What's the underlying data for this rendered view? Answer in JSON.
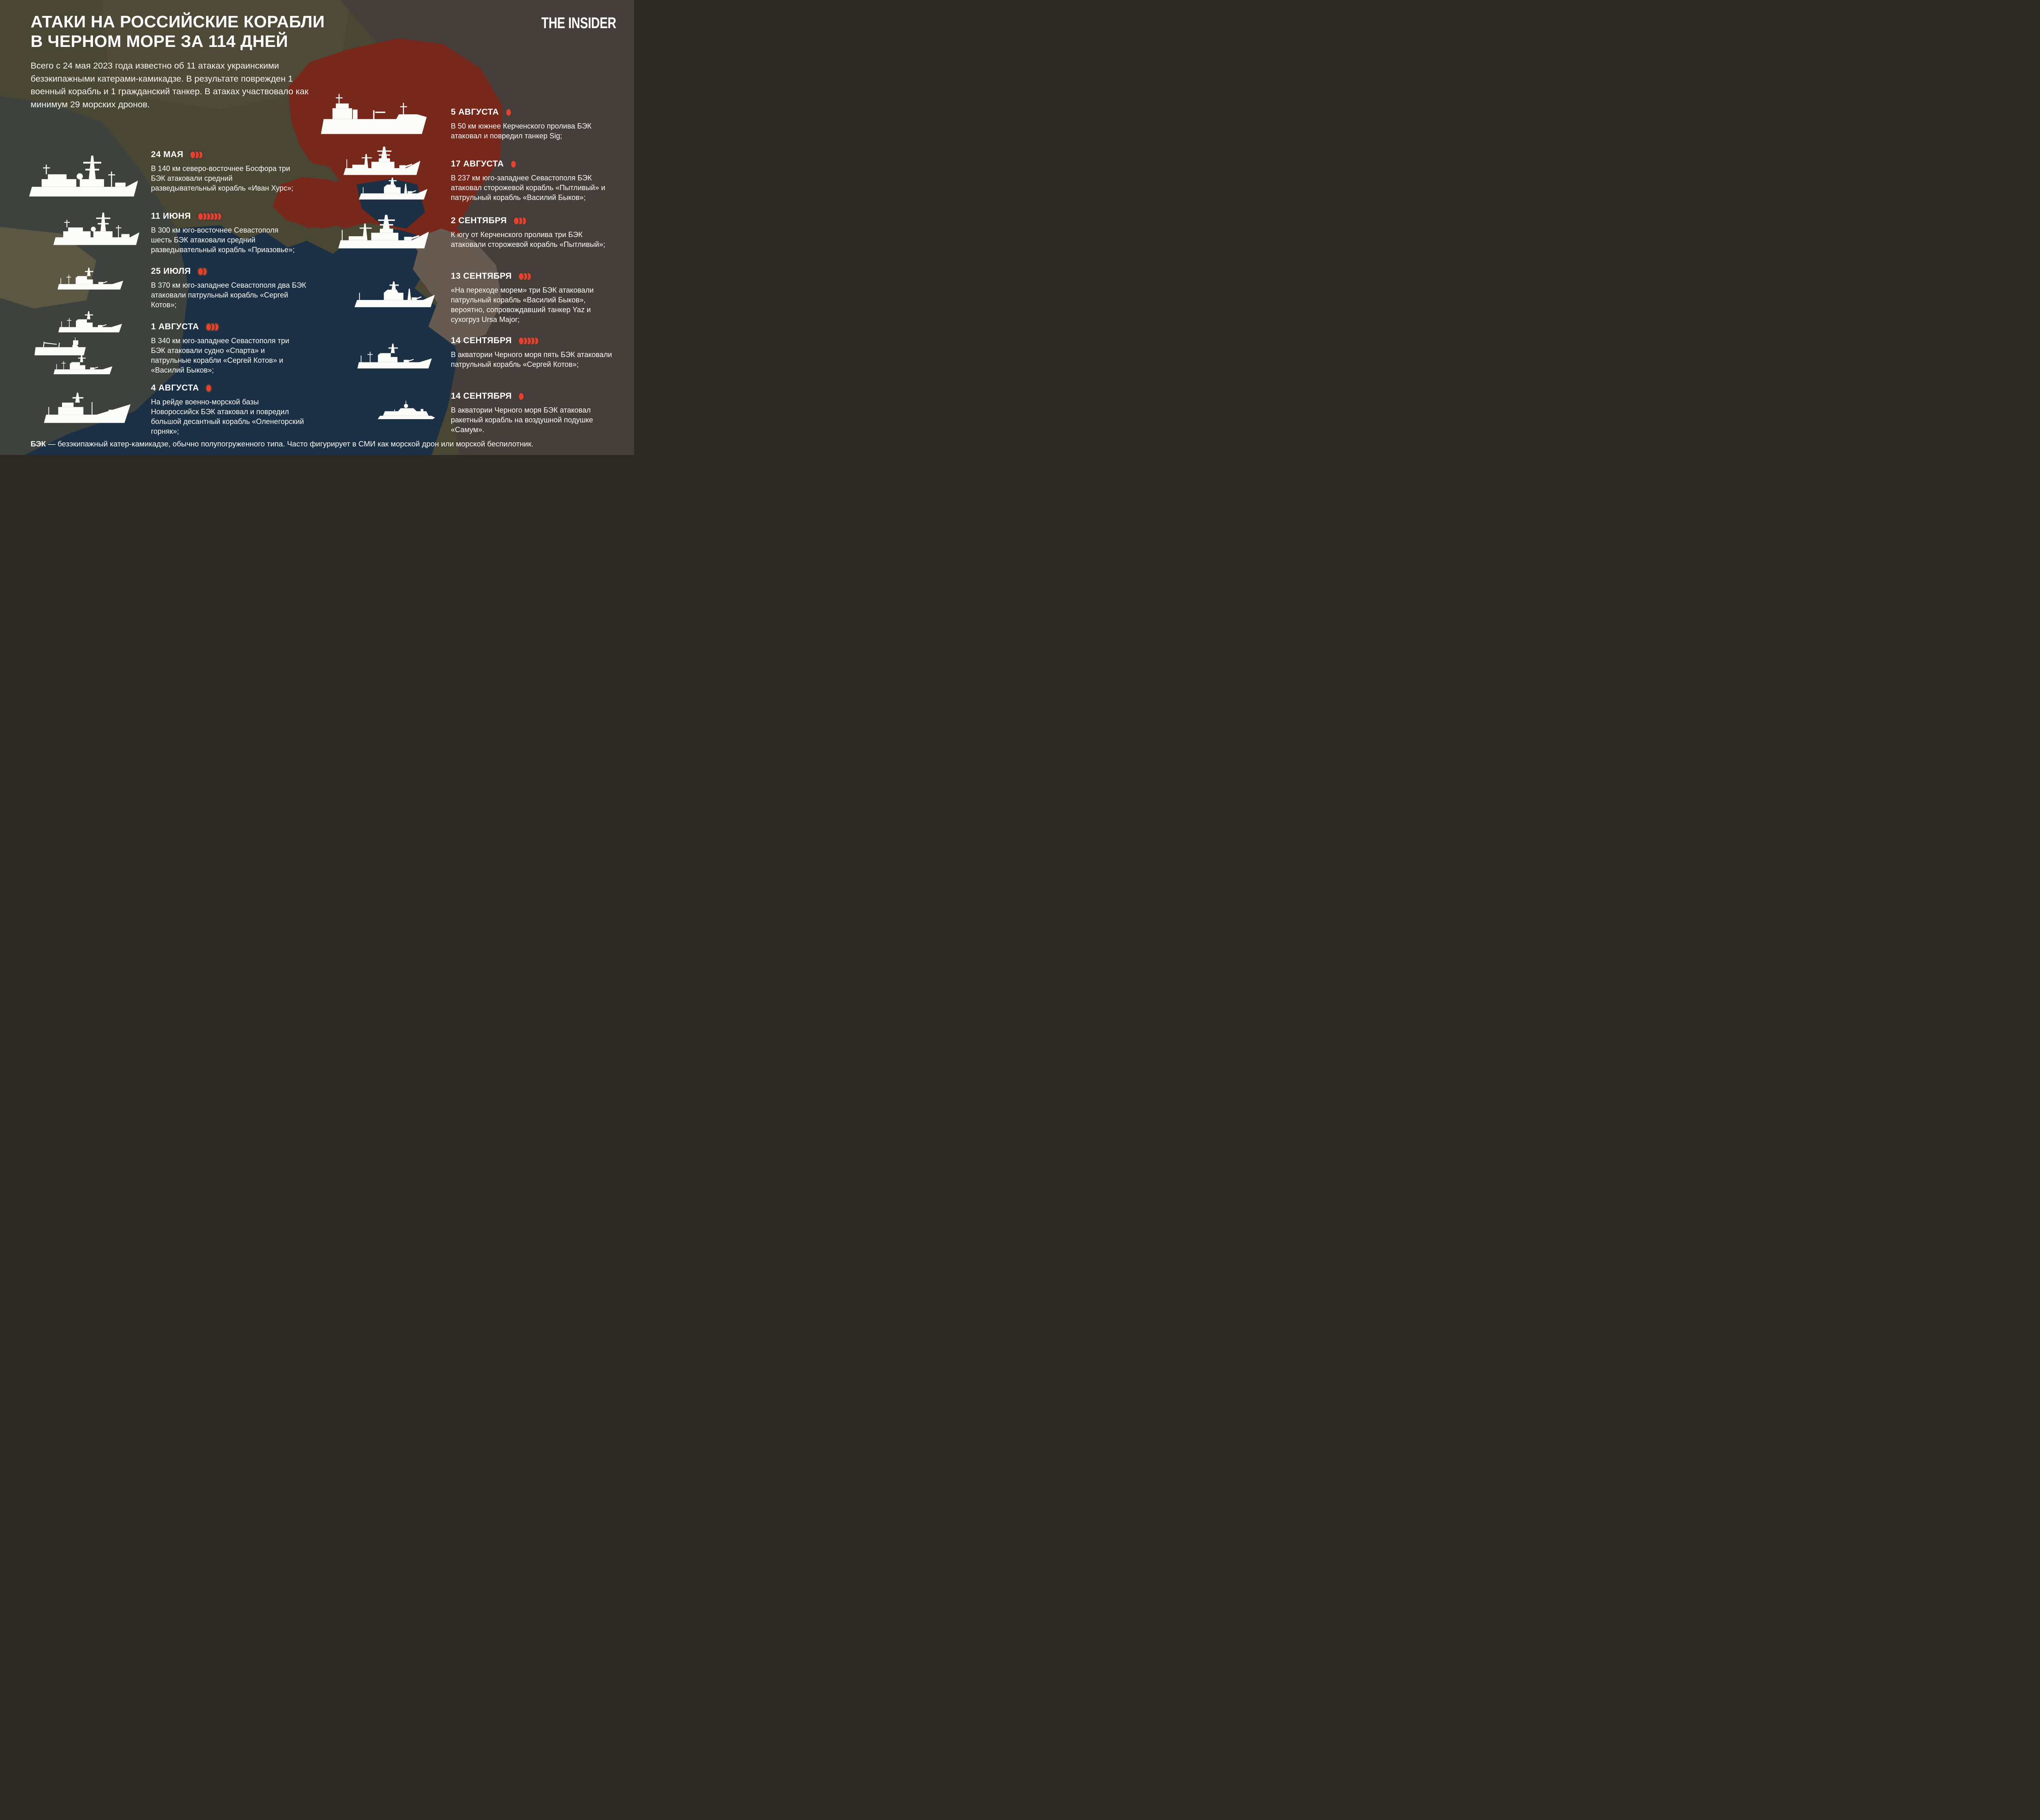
{
  "header": {
    "title_line1": "АТАКИ НА РОССИЙСКИЕ КОРАБЛИ",
    "title_line2": "В ЧЕРНОМ МОРЕ ЗА 114 ДНЕЙ",
    "logo": "THE INSIDER"
  },
  "intro": "Всего с 24 мая 2023 года известно об 11 атаках украинскими безэкипажными катерами-камикадзе. В результате поврежден 1 военный корабль и 1 гражданский танкер. В атаках участвовало как минимум 29 морских дронов.",
  "events_left": [
    {
      "date": "24 МАЯ",
      "drones": 3,
      "text": "В 140 км северо-восточнее Босфора три БЭК атаковали средний разведывательный корабль «Иван Хурс»;",
      "ship_icon": "intel-ship-icon"
    },
    {
      "date": "11 ИЮНЯ",
      "drones": 6,
      "text": "В 300 км юго-восточнее Севастополя шесть БЭК атаковали средний разведывательный корабль «Приазовье»;",
      "ship_icon": "intel-ship-icon"
    },
    {
      "date": "25 ИЮЛЯ",
      "drones": 2,
      "text": "В 370 км юго-западнее Севастополя два БЭК атаковали патрульный корабль «Сергей Котов»;",
      "ship_icon": "patrol-ship-icon"
    },
    {
      "date": "1 АВГУСТА",
      "drones": 3,
      "text": "В 340 км юго-западнее Севастополя три БЭК атаковали судно «Спарта» и патрульные корабли «Сергей Котов» и «Василий Быков»;",
      "ship_icon": "patrol-cargo-ships-icon"
    },
    {
      "date": "4 АВГУСТА",
      "drones": 1,
      "text": "На рейде военно-морской базы Новороссийск БЭК атаковал и повредил большой десантный корабль «Оленегорский горняк»;",
      "ship_icon": "landing-ship-icon"
    }
  ],
  "events_right": [
    {
      "date": "5 АВГУСТА",
      "drones": 1,
      "text": "В 50 км южнее Керченского пролива БЭК атаковал и повредил танкер Sig;",
      "ship_icon": "tanker-icon"
    },
    {
      "date": "17 АВГУСТА",
      "drones": 1,
      "text": "В 237 км юго-западнее Севастополя БЭК атаковал сторожевой корабль «Пытливый» и патрульный корабль «Василий Быков»;",
      "ship_icon": "destroyer-corvette-icons"
    },
    {
      "date": "2 СЕНТЯБРЯ",
      "drones": 3,
      "text": "К югу от Керченского пролива три БЭК атаковали сторожевой корабль «Пытливый»;",
      "ship_icon": "destroyer-icon"
    },
    {
      "date": "13 СЕНТЯБРЯ",
      "drones": 3,
      "text": "«На переходе морем» три БЭК атаковали патрульный корабль «Василий Быков», вероятно, сопровождавший танкер Yaz и сухогруз Ursa Major;",
      "ship_icon": "corvette-icon"
    },
    {
      "date": "14 СЕНТЯБРЯ",
      "drones": 5,
      "text": "В акватории Черного моря пять БЭК атаковали патрульный корабль «Сергей Котов»;",
      "ship_icon": "patrol-ship-icon"
    },
    {
      "date": "14 СЕНТЯБРЯ",
      "drones": 1,
      "text": "В акватории Черного моря БЭК атаковал ракетный корабль на воздушной подушке «Самум».",
      "ship_icon": "hovercraft-icon"
    }
  ],
  "footer": {
    "term": "БЭК",
    "definition": "— безэкипажный катер-камикадзе, обычно полупогруженного типа. Часто фигурирует в СМИ как морской дрон или морской беспилотник."
  },
  "colors": {
    "accent_red": "#e8402f",
    "dot_gap": "#3f3d34",
    "background_olive": "#4a4634",
    "panel_brown": "#463e3a",
    "sea_navy": "#1b3044",
    "russia_red": "#77281a",
    "land_slate": "#3d423e",
    "land_khaki": "#5b5742",
    "caucasus_brown": "#675a50",
    "ship_white": "#fbfbf8",
    "text_white": "#ffffff"
  }
}
